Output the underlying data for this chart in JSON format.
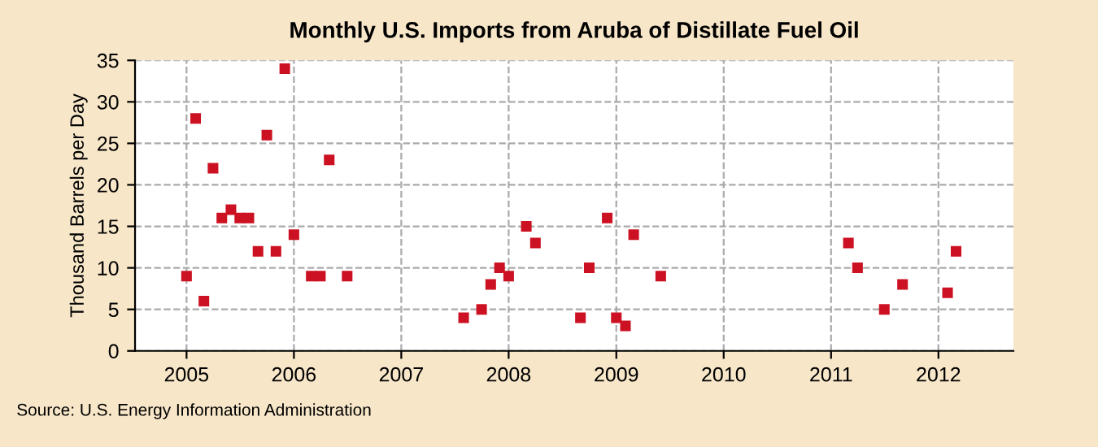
{
  "chart_data": {
    "type": "scatter",
    "title": "Monthly U.S. Imports from Aruba of Distillate Fuel Oil",
    "ylabel": "Thousand Barrels per Day",
    "x": [
      "2005-01",
      "2005-02",
      "2005-03",
      "2005-04",
      "2005-05",
      "2005-06",
      "2005-07",
      "2005-08",
      "2005-09",
      "2005-10",
      "2005-11",
      "2005-12",
      "2006-01",
      "2006-03",
      "2006-04",
      "2006-05",
      "2006-07",
      "2007-08",
      "2007-10",
      "2007-11",
      "2007-12",
      "2008-01",
      "2008-03",
      "2008-04",
      "2008-09",
      "2008-10",
      "2008-12",
      "2009-01",
      "2009-02",
      "2009-03",
      "2009-06",
      "2011-03",
      "2011-04",
      "2011-07",
      "2011-09",
      "2012-02",
      "2012-03"
    ],
    "series": [
      {
        "color": "#cc1122",
        "values": [
          9,
          28,
          6,
          22,
          16,
          17,
          16,
          16,
          12,
          26,
          12,
          34,
          14,
          9,
          9,
          23,
          9,
          4,
          5,
          8,
          10,
          9,
          15,
          13,
          4,
          10,
          16,
          4,
          3,
          14,
          9,
          13,
          10,
          5,
          8,
          7,
          12
        ]
      }
    ],
    "xlim": [
      "2004-07-10",
      "2012-09-12"
    ],
    "xticks": [
      {
        "value": "2005-01-01",
        "label": "2005"
      },
      {
        "value": "2006-01-01",
        "label": "2006"
      },
      {
        "value": "2007-01-01",
        "label": "2007"
      },
      {
        "value": "2008-01-01",
        "label": "2008"
      },
      {
        "value": "2009-01-01",
        "label": "2009"
      },
      {
        "value": "2010-01-01",
        "label": "2010"
      },
      {
        "value": "2011-01-01",
        "label": "2011"
      },
      {
        "value": "2012-01-01",
        "label": "2012"
      }
    ],
    "ylim": [
      0,
      35
    ],
    "yticks": [
      0,
      5,
      10,
      15,
      20,
      25,
      30,
      35
    ],
    "grid": true,
    "marker": "square",
    "annotations": [
      "Source: U.S. Energy Information Administration"
    ]
  }
}
